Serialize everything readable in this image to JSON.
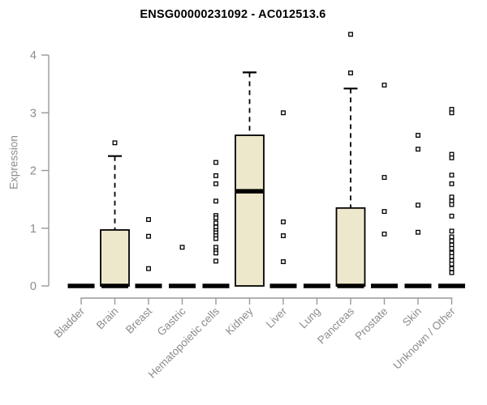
{
  "chart_data": {
    "type": "boxplot",
    "title": "ENSG00000231092 - AC012513.6",
    "ylabel": "Expression",
    "xlabel": "",
    "ylim": [
      0,
      4.4
    ],
    "yticks": [
      0,
      1,
      2,
      3,
      4
    ],
    "grid": false,
    "legend": "none",
    "categories": [
      "Bladder",
      "Brain",
      "Breast",
      "Gastric",
      "Hematopoietic cells",
      "Kidney",
      "Liver",
      "Lung",
      "Pancreas",
      "Prostate",
      "Skin",
      "Unknown / Other"
    ],
    "boxes": [
      {
        "category": "Bladder",
        "q1": 0,
        "median": 0,
        "q3": 0,
        "whisker_low": 0,
        "whisker_high": 0,
        "outliers": []
      },
      {
        "category": "Brain",
        "q1": 0,
        "median": 0,
        "q3": 0.97,
        "whisker_low": 0,
        "whisker_high": 2.25,
        "outliers": [
          2.48
        ]
      },
      {
        "category": "Breast",
        "q1": 0,
        "median": 0,
        "q3": 0,
        "whisker_low": 0,
        "whisker_high": 0,
        "outliers": [
          1.15,
          0.86,
          0.3
        ]
      },
      {
        "category": "Gastric",
        "q1": 0,
        "median": 0,
        "q3": 0,
        "whisker_low": 0,
        "whisker_high": 0,
        "outliers": [
          0.67
        ]
      },
      {
        "category": "Hematopoietic cells",
        "q1": 0,
        "median": 0,
        "q3": 0,
        "whisker_low": 0,
        "whisker_high": 0,
        "outliers": [
          2.14,
          1.91,
          1.77,
          1.47,
          1.22,
          1.18,
          1.09,
          1.02,
          0.96,
          0.92,
          0.87,
          0.82,
          0.67,
          0.61,
          0.57,
          0.43
        ]
      },
      {
        "category": "Kidney",
        "q1": 0,
        "median": 1.64,
        "q3": 2.61,
        "whisker_low": 0,
        "whisker_high": 3.7,
        "outliers": []
      },
      {
        "category": "Liver",
        "q1": 0,
        "median": 0,
        "q3": 0,
        "whisker_low": 0,
        "whisker_high": 0,
        "outliers": [
          3.0,
          1.11,
          0.87,
          0.42
        ]
      },
      {
        "category": "Lung",
        "q1": 0,
        "median": 0,
        "q3": 0,
        "whisker_low": 0,
        "whisker_high": 0,
        "outliers": []
      },
      {
        "category": "Pancreas",
        "q1": 0,
        "median": 0,
        "q3": 1.35,
        "whisker_low": 0,
        "whisker_high": 3.42,
        "outliers": [
          3.69,
          4.36
        ]
      },
      {
        "category": "Prostate",
        "q1": 0,
        "median": 0,
        "q3": 0,
        "whisker_low": 0,
        "whisker_high": 0,
        "outliers": [
          3.48,
          1.88,
          1.29,
          0.9
        ]
      },
      {
        "category": "Skin",
        "q1": 0,
        "median": 0,
        "q3": 0,
        "whisker_low": 0,
        "whisker_high": 0,
        "outliers": [
          2.61,
          2.37,
          1.4,
          0.93
        ]
      },
      {
        "category": "Unknown / Other",
        "q1": 0,
        "median": 0,
        "q3": 0,
        "whisker_low": 0,
        "whisker_high": 0,
        "outliers": [
          3.06,
          3.0,
          2.28,
          2.22,
          1.92,
          1.77,
          1.54,
          1.47,
          1.41,
          1.21,
          0.95,
          0.85,
          0.78,
          0.71,
          0.65,
          0.57,
          0.51,
          0.44,
          0.38,
          0.3,
          0.23
        ]
      }
    ],
    "colors": {
      "box_fill": "#EDE7CC",
      "box_border": "#000000",
      "median": "#000000",
      "whisker": "#000000",
      "outlier_stroke": "#000000",
      "outlier_fill": "#FFFFFF",
      "axis": "#999999",
      "tick_label": "#8C8C8C",
      "title": "#000000"
    }
  }
}
